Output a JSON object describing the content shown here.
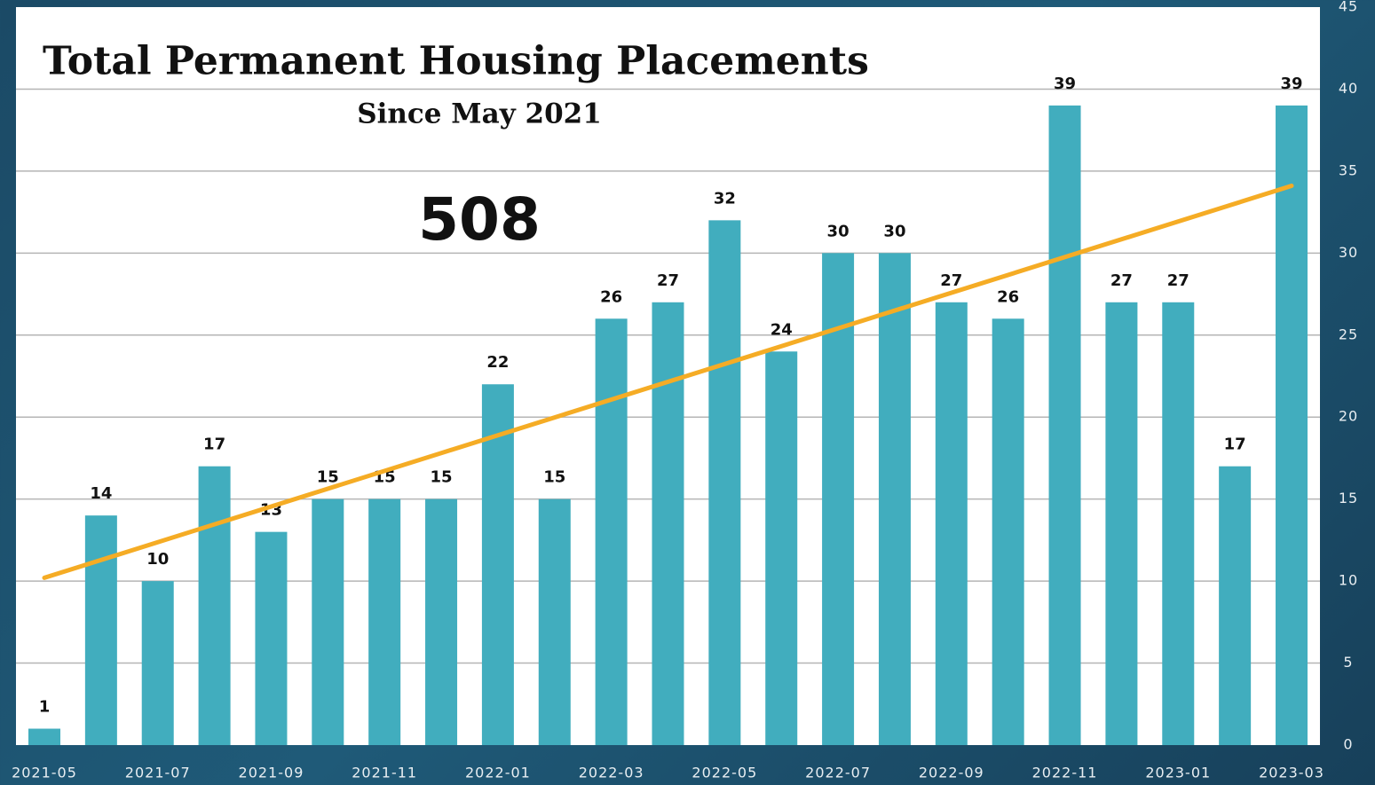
{
  "chart_data": {
    "type": "bar",
    "title": "Total Permanent Housing Placements",
    "subtitle": "Since May 2021",
    "annotation": "508",
    "categories": [
      "2021-05",
      null,
      "2021-07",
      null,
      "2021-09",
      null,
      "2021-11",
      null,
      "2022-01",
      null,
      "2022-03",
      null,
      "2022-05",
      null,
      "2022-07",
      null,
      "2022-09",
      null,
      "2022-11",
      null,
      "2023-01",
      null,
      "2023-03"
    ],
    "values": [
      1,
      14,
      10,
      17,
      13,
      15,
      15,
      15,
      22,
      15,
      26,
      27,
      32,
      24,
      30,
      30,
      27,
      26,
      39,
      27,
      27,
      17,
      39
    ],
    "color": "#41adbe",
    "trendline": {
      "values": [
        10.2,
        34.1
      ],
      "color": "#f5ac25"
    },
    "ylim": [
      0,
      45
    ],
    "yticks": [
      0,
      5,
      10,
      15,
      20,
      25,
      30,
      35,
      40,
      45
    ],
    "grid": true,
    "y_axis_side": "right"
  }
}
